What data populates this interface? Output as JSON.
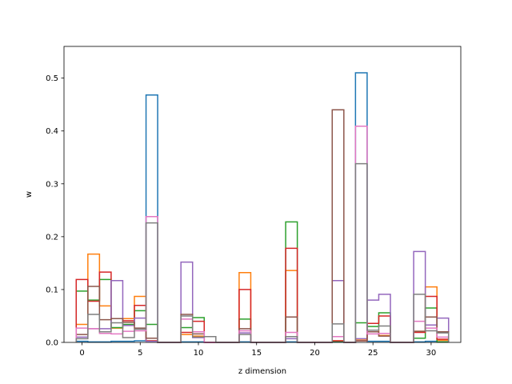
{
  "chart_data": {
    "type": "bar",
    "style": "step-histogram",
    "title": "",
    "xlabel": "z dimension",
    "ylabel": "w",
    "xlim": [
      -1.55,
      32.55
    ],
    "ylim": [
      0,
      0.56
    ],
    "x_ticks": [
      0,
      5,
      10,
      15,
      20,
      25,
      30
    ],
    "y_ticks": [
      0.0,
      0.1,
      0.2,
      0.3,
      0.4,
      0.5
    ],
    "x_tick_labels": [
      "0",
      "5",
      "10",
      "15",
      "20",
      "25",
      "30"
    ],
    "y_tick_labels": [
      "0.0",
      "0.1",
      "0.2",
      "0.3",
      "0.4",
      "0.5"
    ],
    "bin_width": 1,
    "x": [
      0,
      1,
      2,
      3,
      4,
      5,
      6,
      7,
      8,
      9,
      10,
      11,
      12,
      13,
      14,
      15,
      16,
      17,
      18,
      19,
      20,
      21,
      22,
      23,
      24,
      25,
      26,
      27,
      28,
      29,
      30,
      31
    ],
    "grid": false,
    "legend": "none",
    "series": [
      {
        "color": "#1f77b4",
        "values": [
          0.002,
          0.001,
          0.001,
          0.002,
          0.002,
          0.003,
          0.468,
          0,
          0,
          0.001,
          0.001,
          0,
          0,
          0,
          0.001,
          0,
          0,
          0,
          0.001,
          0,
          0,
          0,
          0.001,
          0,
          0.51,
          0.002,
          0.002,
          0,
          0,
          0.001,
          0.002,
          0.001
        ]
      },
      {
        "color": "#ff7f0e",
        "values": [
          0.034,
          0.167,
          0.069,
          0.027,
          0.045,
          0.087,
          0.003,
          0,
          0,
          0.015,
          0.012,
          0,
          0,
          0,
          0.132,
          0,
          0,
          0,
          0.136,
          0,
          0,
          0,
          0.003,
          0,
          0.006,
          0.023,
          0.013,
          0,
          0,
          0.021,
          0.105,
          0.004
        ]
      },
      {
        "color": "#2ca02c",
        "values": [
          0.097,
          0.08,
          0.119,
          0.028,
          0.034,
          0.06,
          0.034,
          0,
          0,
          0.028,
          0.047,
          0,
          0,
          0,
          0.044,
          0,
          0,
          0,
          0.228,
          0,
          0,
          0,
          0.002,
          0,
          0.037,
          0.03,
          0.056,
          0,
          0,
          0.008,
          0.065,
          0.001
        ]
      },
      {
        "color": "#d62728",
        "values": [
          0.119,
          0.078,
          0.133,
          0.045,
          0.041,
          0.07,
          0.003,
          0,
          0,
          0.019,
          0.04,
          0,
          0,
          0,
          0.1,
          0,
          0,
          0,
          0.178,
          0,
          0,
          0,
          0.003,
          0,
          0.003,
          0.036,
          0.05,
          0,
          0,
          0.019,
          0.087,
          0.006
        ]
      },
      {
        "color": "#9467bd",
        "values": [
          0.01,
          0.026,
          0.026,
          0.117,
          0.032,
          0.046,
          0.002,
          0,
          0,
          0.152,
          0.009,
          0,
          0,
          0,
          0.018,
          0,
          0,
          0,
          0.007,
          0,
          0,
          0,
          0.117,
          0,
          0.007,
          0.08,
          0.091,
          0,
          0,
          0.172,
          0.033,
          0.046
        ]
      },
      {
        "color": "#8c564b",
        "values": [
          0.015,
          0.106,
          0.043,
          0.045,
          0.038,
          0.027,
          0.008,
          0,
          0,
          0.053,
          0.016,
          0,
          0,
          0,
          0.026,
          0,
          0,
          0,
          0.048,
          0,
          0,
          0,
          0.44,
          0,
          0.003,
          0.02,
          0.012,
          0,
          0,
          0.021,
          0.048,
          0.02
        ]
      },
      {
        "color": "#e377c2",
        "values": [
          0.027,
          0.026,
          0.017,
          0.016,
          0.021,
          0.022,
          0.238,
          0,
          0,
          0.044,
          0.02,
          0,
          0,
          0,
          0.022,
          0,
          0,
          0,
          0.019,
          0,
          0,
          0,
          0.011,
          0,
          0.409,
          0.016,
          0.017,
          0,
          0,
          0.04,
          0.027,
          0.01
        ]
      },
      {
        "color": "#7f7f7f",
        "values": [
          0.007,
          0.053,
          0.02,
          0.037,
          0.009,
          0.025,
          0.226,
          0,
          0,
          0.05,
          0.01,
          0.011,
          0,
          0,
          0.015,
          0,
          0,
          0,
          0.011,
          0,
          0,
          0,
          0.035,
          0,
          0.338,
          0.023,
          0.031,
          0,
          0,
          0.091,
          0.022,
          0.018
        ]
      }
    ]
  }
}
